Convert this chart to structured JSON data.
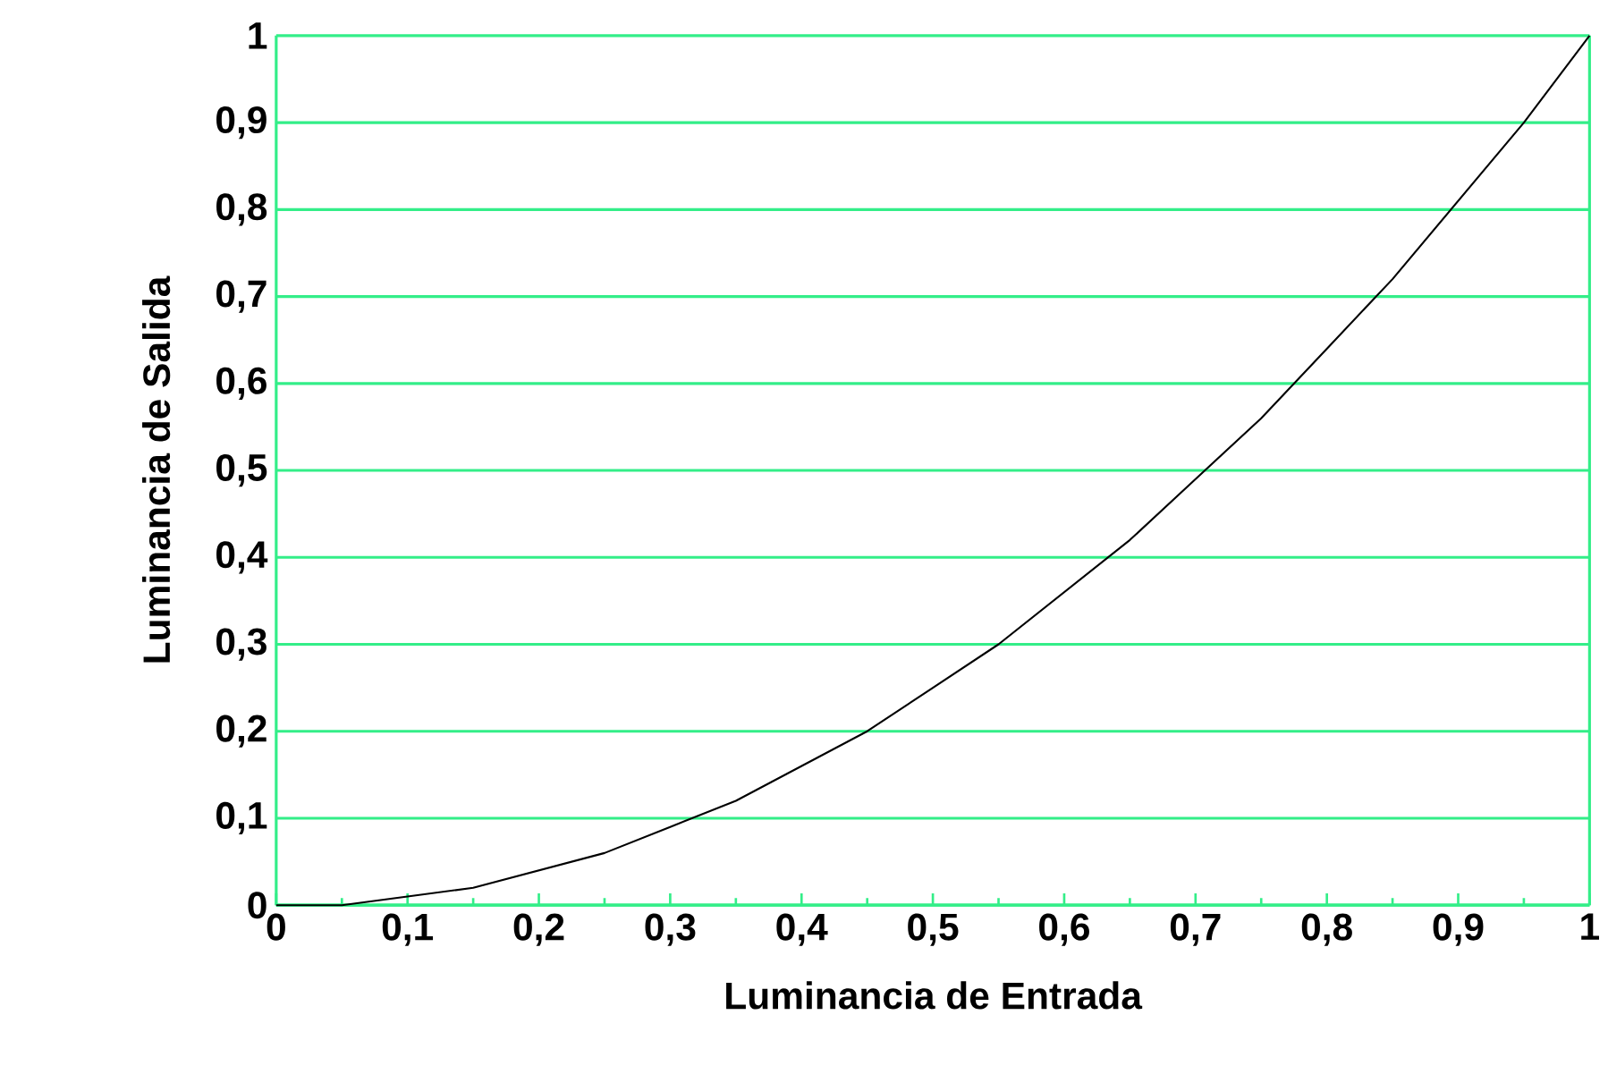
{
  "chart_data": {
    "type": "line",
    "xlabel": "Luminancia de Entrada",
    "ylabel": "Luminancia de Salida",
    "x": [
      0,
      0.05,
      0.1,
      0.15,
      0.2,
      0.25,
      0.3,
      0.35,
      0.4,
      0.45,
      0.5,
      0.55,
      0.6,
      0.65,
      0.7,
      0.75,
      0.8,
      0.85,
      0.9,
      0.95,
      1
    ],
    "series": [
      {
        "color": "#000000",
        "values": [
          0,
          0,
          0.01,
          0.02,
          0.04,
          0.06,
          0.09,
          0.12,
          0.16,
          0.2,
          0.25,
          0.3,
          0.36,
          0.42,
          0.49,
          0.56,
          0.64,
          0.72,
          0.81,
          0.9,
          1
        ]
      }
    ],
    "xlim": [
      0,
      1
    ],
    "ylim": [
      0,
      1
    ],
    "xticks": [
      0,
      {
        "value": 0.1,
        "label": "0,1"
      },
      {
        "value": 0.2,
        "label": "0,2"
      },
      {
        "value": 0.3,
        "label": "0,3"
      },
      {
        "value": 0.4,
        "label": "0,4"
      },
      {
        "value": 0.5,
        "label": "0,5"
      },
      {
        "value": 0.6,
        "label": "0,6"
      },
      {
        "value": 0.7,
        "label": "0,7"
      },
      {
        "value": 0.8,
        "label": "0,8"
      },
      {
        "value": 0.9,
        "label": "0,9"
      },
      1
    ],
    "yticks": [
      0,
      {
        "value": 0.1,
        "label": "0,1"
      },
      {
        "value": 0.2,
        "label": "0,2"
      },
      {
        "value": 0.3,
        "label": "0,3"
      },
      {
        "value": 0.4,
        "label": "0,4"
      },
      {
        "value": 0.5,
        "label": "0,5"
      },
      {
        "value": 0.6,
        "label": "0,6"
      },
      {
        "value": 0.7,
        "label": "0,7"
      },
      {
        "value": 0.8,
        "label": "0,8"
      },
      {
        "value": 0.9,
        "label": "0,9"
      },
      1
    ],
    "grid": "y",
    "marker": "none",
    "line_style": "solid"
  }
}
